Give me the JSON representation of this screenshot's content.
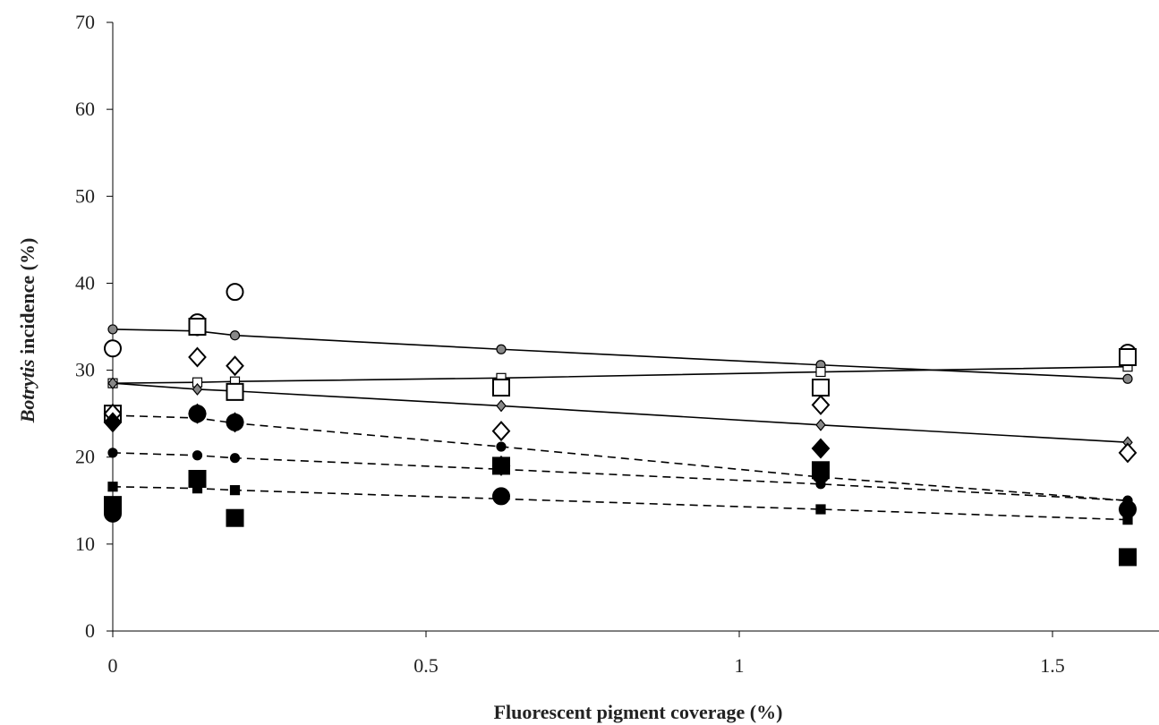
{
  "chart_data": {
    "type": "scatter",
    "title": "",
    "xlabel": "Fluorescent pigment coverage (%)",
    "ylabel": {
      "italic": "Botrytis",
      "rest": " incidence (%)"
    },
    "xlim": [
      0,
      1.67
    ],
    "ylim": [
      0,
      70
    ],
    "xticks": [
      0,
      0.5,
      1,
      1.5
    ],
    "xtick_labels": [
      "0",
      "0.5",
      "1",
      "1.5"
    ],
    "yticks": [
      0,
      10,
      20,
      30,
      40,
      50,
      60,
      70
    ],
    "ytick_labels": [
      "0",
      "10",
      "20",
      "30",
      "40",
      "50",
      "60",
      "70"
    ],
    "grid": false,
    "legend": "none",
    "x": [
      0,
      0.135,
      0.195,
      0.62,
      1.13,
      1.62
    ],
    "series": [
      {
        "marker": "open-circle",
        "fill": "#ffffff",
        "values": [
          32.5,
          35.5,
          39,
          28,
          28,
          32
        ]
      },
      {
        "marker": "open-square",
        "fill": "#ffffff",
        "values": [
          25,
          35,
          27.5,
          28,
          28,
          31.5
        ]
      },
      {
        "marker": "open-diamond",
        "fill": "#ffffff",
        "values": [
          25,
          31.5,
          30.5,
          23,
          26,
          20.5
        ]
      },
      {
        "marker": "filled-circle",
        "fill": "#000000",
        "values": [
          13.5,
          25,
          24,
          15.5,
          18,
          14
        ]
      },
      {
        "marker": "filled-square",
        "fill": "#000000",
        "values": [
          14.5,
          17.5,
          13,
          19,
          18.5,
          8.5
        ]
      },
      {
        "marker": "filled-diamond",
        "fill": "#000000",
        "values": [
          24,
          25,
          24,
          19,
          21,
          14
        ]
      }
    ],
    "trend_lines": [
      {
        "style": "solid",
        "marker": "open-circle",
        "values": [
          34.7,
          34.5,
          34.0,
          32.4,
          30.6,
          29.0
        ]
      },
      {
        "style": "solid",
        "marker": "open-square",
        "values": [
          28.5,
          28.6,
          28.7,
          29.1,
          29.8,
          30.4
        ]
      },
      {
        "style": "solid",
        "marker": "open-diamond",
        "values": [
          28.5,
          27.8,
          27.6,
          25.9,
          23.7,
          21.7
        ]
      },
      {
        "style": "dashed",
        "marker": "filled-circle",
        "values": [
          24.8,
          24.5,
          23.9,
          21.2,
          17.7,
          15.0
        ]
      },
      {
        "style": "dashed",
        "marker": "filled-circle",
        "values": [
          20.5,
          20.2,
          19.9,
          18.6,
          16.9,
          15.0
        ]
      },
      {
        "style": "dashed",
        "marker": "filled-square",
        "values": [
          16.6,
          16.4,
          16.2,
          15.2,
          14.0,
          12.8
        ]
      }
    ]
  }
}
